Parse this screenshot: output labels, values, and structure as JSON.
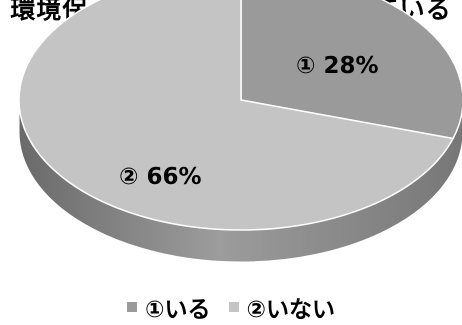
{
  "title": "環境保全に関する活動に参加している",
  "colors": {
    "iru": "#9a9a9a",
    "inai": "#c4c4c4"
  },
  "chart_data": {
    "type": "pie",
    "title": "環境保全に関する活動に参加している",
    "categories": [
      "①いる",
      "②いない"
    ],
    "values": [
      28,
      66
    ],
    "data_labels": [
      "① 28%",
      "② 66%"
    ],
    "legend": "bottom"
  }
}
